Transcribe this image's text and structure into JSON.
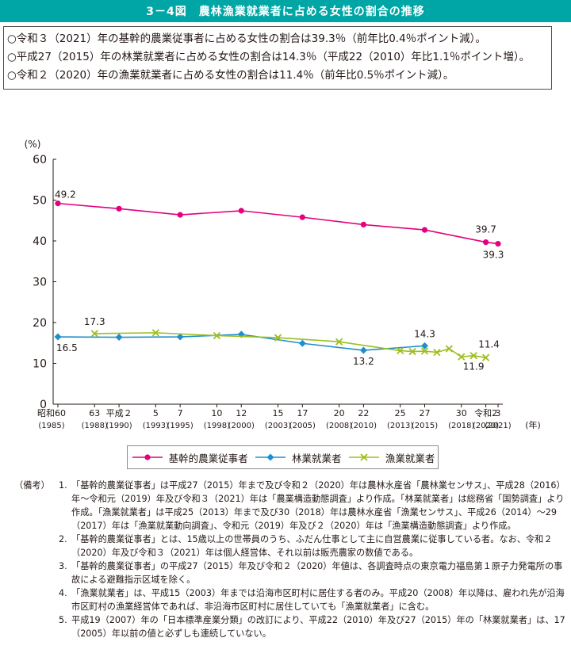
{
  "title": "3－4図　農林漁業就業者に占める女性の割合の推移",
  "summary": [
    "○令和３（2021）年の基幹的農業従事者に占める女性の割合は39.3％（前年比0.4％ポイント減）。",
    "○平成27（2015）年の林業就業者に占める女性の割合は14.3％（平成22（2010）年比1.1％ポイント増）。",
    "○令和２（2020）年の漁業就業者に占める女性の割合は11.4％（前年比0.5％ポイント減）。"
  ],
  "chart_data": {
    "type": "line",
    "ylabel": "(%)",
    "xlabel": "(年)",
    "ylim": [
      0,
      60
    ],
    "yticks": [
      0,
      10,
      20,
      30,
      40,
      50,
      60
    ],
    "grid": false,
    "legend_position": "bottom",
    "xticks": [
      {
        "year": 1985,
        "label1": "昭和60",
        "label2": "(1985)"
      },
      {
        "year": 1988,
        "label1": "63",
        "label2": "(1988)"
      },
      {
        "year": 1990,
        "label1": "平成２",
        "label2": "(1990)"
      },
      {
        "year": 1993,
        "label1": "5",
        "label2": "(1993)"
      },
      {
        "year": 1995,
        "label1": "7",
        "label2": "(1995)"
      },
      {
        "year": 1998,
        "label1": "10",
        "label2": "(1998)"
      },
      {
        "year": 2000,
        "label1": "12",
        "label2": "(2000)"
      },
      {
        "year": 2003,
        "label1": "15",
        "label2": "(2003)"
      },
      {
        "year": 2005,
        "label1": "17",
        "label2": "(2005)"
      },
      {
        "year": 2008,
        "label1": "20",
        "label2": "(2008)"
      },
      {
        "year": 2010,
        "label1": "22",
        "label2": "(2010)"
      },
      {
        "year": 2013,
        "label1": "25",
        "label2": "(2013)"
      },
      {
        "year": 2015,
        "label1": "27",
        "label2": "(2015)"
      },
      {
        "year": 2018,
        "label1": "30",
        "label2": "(2018)"
      },
      {
        "year": 2020,
        "label1": "令和2",
        "label2": "(2020)"
      },
      {
        "year": 2021,
        "label1": "3",
        "label2": "(2021)"
      }
    ],
    "series": [
      {
        "name": "基幹的農業従事者",
        "color": "#e4007f",
        "marker": "circle",
        "x": [
          1985,
          1990,
          1995,
          2000,
          2005,
          2010,
          2015,
          2020,
          2021
        ],
        "values": [
          49.2,
          47.9,
          46.4,
          47.4,
          45.8,
          44.0,
          42.7,
          39.7,
          39.3
        ],
        "labels": [
          {
            "i": 0,
            "text": "49.2"
          },
          {
            "i": 7,
            "text": "39.7"
          },
          {
            "i": 8,
            "text": "39.3"
          }
        ]
      },
      {
        "name": "林業就業者",
        "color": "#1f8fcb",
        "marker": "diamond",
        "x": [
          1985,
          1990,
          1995,
          2000,
          2005,
          2010,
          2015
        ],
        "values": [
          16.5,
          16.4,
          16.5,
          17.1,
          14.9,
          13.2,
          14.3
        ],
        "labels": [
          {
            "i": 0,
            "text": "16.5"
          },
          {
            "i": 5,
            "text": "13.2"
          },
          {
            "i": 6,
            "text": "14.3"
          }
        ]
      },
      {
        "name": "漁業就業者",
        "color": "#9cbf1f",
        "marker": "x",
        "x": [
          1988,
          1993,
          1998,
          2003,
          2008,
          2013,
          2014,
          2015,
          2016,
          2017,
          2018,
          2019,
          2020
        ],
        "values": [
          17.3,
          17.5,
          16.8,
          16.3,
          15.3,
          13.1,
          12.9,
          13.0,
          12.7,
          13.6,
          11.6,
          11.9,
          11.4
        ],
        "labels": [
          {
            "i": 0,
            "text": "17.3"
          },
          {
            "i": 11,
            "text": "11.9"
          },
          {
            "i": 12,
            "text": "11.4"
          }
        ]
      }
    ]
  },
  "notes": {
    "head": "（備考）",
    "items": [
      {
        "num": "1.",
        "text": "「基幹的農業従事者」は平成27（2015）年まで及び令和２（2020）年は農林水産省「農林業センサス」、平成28（2016）年～令和元（2019）年及び令和３（2021）年は「農業構造動態調査」より作成。「林業就業者」は総務省「国勢調査」より作成。「漁業就業者」は平成25（2013）年まで及び30（2018）年は農林水産省「漁業センサス」、平成26（2014）～29（2017）年は「漁業就業動向調査」、令和元（2019）年及び２（2020）年は「漁業構造動態調査」より作成。"
      },
      {
        "num": "2.",
        "text": "「基幹的農業従事者」とは、15歳以上の世帯員のうち、ふだん仕事として主に自営農業に従事している者。なお、令和２（2020）年及び令和３（2021）年は個人経営体、それ以前は販売農家の数値である。"
      },
      {
        "num": "3.",
        "text": "「基幹的農業従事者」の平成27（2015）年及び令和２（2020）年値は、各調査時点の東京電力福島第１原子力発電所の事故による避難指示区域を除く。"
      },
      {
        "num": "4.",
        "text": "「漁業就業者」は、平成15（2003）年までは沿海市区町村に居住する者のみ。平成20（2008）年以降は、雇われ先が沿海市区町村の漁業経営体であれば、非沿海市区町村に居住していても「漁業就業者」に含む。"
      },
      {
        "num": "5.",
        "text": "平成19（2007）年の「日本標準産業分類」の改訂により、平成22（2010）年及び27（2015）年の「林業就業者」は、17（2005）年以前の値と必ずしも連続していない。"
      }
    ]
  }
}
